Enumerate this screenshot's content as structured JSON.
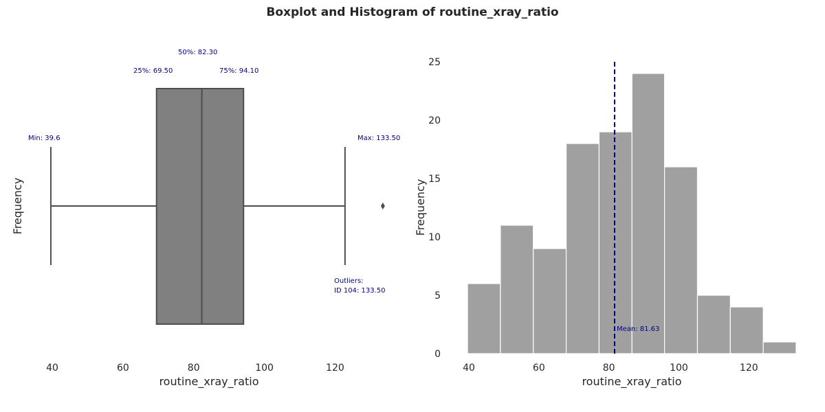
{
  "title": "Boxplot and Histogram of routine_xray_ratio",
  "chart_data": [
    {
      "type": "box",
      "xlabel": "routine_xray_ratio",
      "ylabel": "Frequency",
      "xlim": [
        33,
        138
      ],
      "xticks": [
        40,
        60,
        80,
        100,
        120
      ],
      "whisker_low": 39.6,
      "q1": 69.5,
      "median": 82.3,
      "q3": 94.1,
      "whisker_high": 122.8,
      "outliers": [
        133.5
      ],
      "labels": {
        "min": "Min: 39.6",
        "q1": "25%: 69.50",
        "median": "50%: 82.30",
        "q3": "75%: 94.10",
        "max": "Max: 133.50",
        "outliers_title": "Outliers:",
        "outliers_list": "ID 104: 133.50"
      },
      "colors": {
        "box": "#808080",
        "line": "#4d4d4d",
        "annotation": "#000080"
      }
    },
    {
      "type": "histogram",
      "xlabel": "routine_xray_ratio",
      "ylabel": "Frequency",
      "xlim": [
        39.6,
        133.5
      ],
      "ylim": [
        0,
        25
      ],
      "xticks": [
        40,
        60,
        80,
        100,
        120
      ],
      "yticks": [
        0,
        5,
        10,
        15,
        20,
        25
      ],
      "bin_edges": [
        39.6,
        49.0,
        58.4,
        67.8,
        77.2,
        86.6,
        95.9,
        105.3,
        114.7,
        124.1,
        133.5
      ],
      "counts": [
        6,
        11,
        9,
        18,
        19,
        24,
        16,
        5,
        4,
        1
      ],
      "mean": 81.63,
      "mean_label": "Mean: 81.63",
      "colors": {
        "bar": "#a0a0a0",
        "mean_line": "#000080"
      }
    }
  ]
}
